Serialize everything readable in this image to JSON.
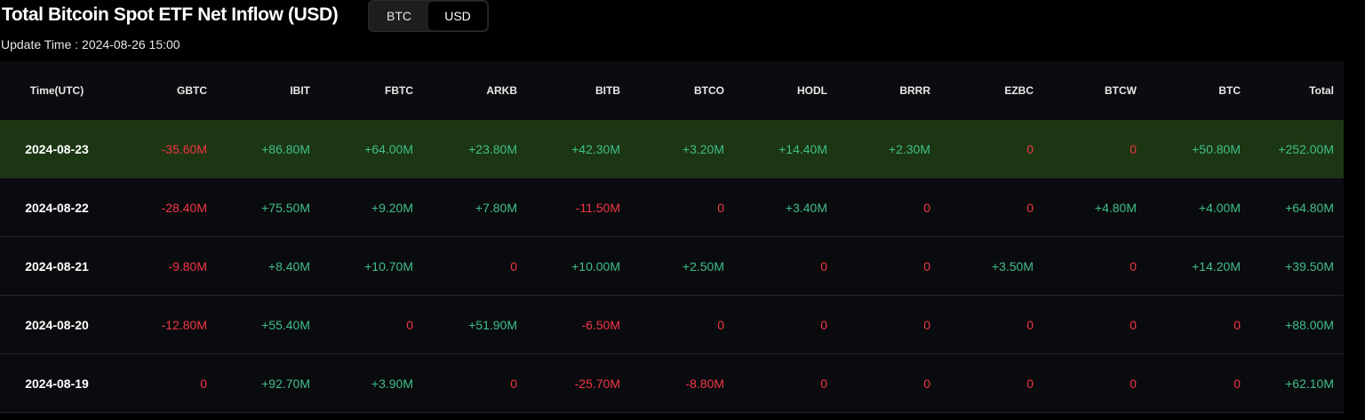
{
  "header": {
    "title": "Total Bitcoin Spot ETF Net Inflow (USD)",
    "toggle": [
      {
        "label": "BTC",
        "active": false
      },
      {
        "label": "USD",
        "active": true
      }
    ],
    "update_time": "Update Time : 2024-08-26 15:00"
  },
  "table": {
    "columns": [
      "Time(UTC)",
      "GBTC",
      "IBIT",
      "FBTC",
      "ARKB",
      "BITB",
      "BTCO",
      "HODL",
      "BRRR",
      "EZBC",
      "BTCW",
      "BTC",
      "Total"
    ],
    "rows": [
      {
        "highlight": true,
        "cells": [
          "2024-08-23",
          "-35.60M",
          "+86.80M",
          "+64.00M",
          "+23.80M",
          "+42.30M",
          "+3.20M",
          "+14.40M",
          "+2.30M",
          "0",
          "0",
          "+50.80M",
          "+252.00M"
        ]
      },
      {
        "highlight": false,
        "cells": [
          "2024-08-22",
          "-28.40M",
          "+75.50M",
          "+9.20M",
          "+7.80M",
          "-11.50M",
          "0",
          "+3.40M",
          "0",
          "0",
          "+4.80M",
          "+4.00M",
          "+64.80M"
        ]
      },
      {
        "highlight": false,
        "cells": [
          "2024-08-21",
          "-9.80M",
          "+8.40M",
          "+10.70M",
          "0",
          "+10.00M",
          "+2.50M",
          "0",
          "0",
          "+3.50M",
          "0",
          "+14.20M",
          "+39.50M"
        ]
      },
      {
        "highlight": false,
        "cells": [
          "2024-08-20",
          "-12.80M",
          "+55.40M",
          "0",
          "+51.90M",
          "-6.50M",
          "0",
          "0",
          "0",
          "0",
          "0",
          "0",
          "+88.00M"
        ]
      },
      {
        "highlight": false,
        "cells": [
          "2024-08-19",
          "0",
          "+92.70M",
          "+3.90M",
          "0",
          "-25.70M",
          "-8.80M",
          "0",
          "0",
          "0",
          "0",
          "0",
          "+62.10M"
        ]
      }
    ]
  },
  "colors": {
    "positive": "#3fbf8a",
    "negative": "#f23645",
    "highlight_row": "#1c3512"
  }
}
